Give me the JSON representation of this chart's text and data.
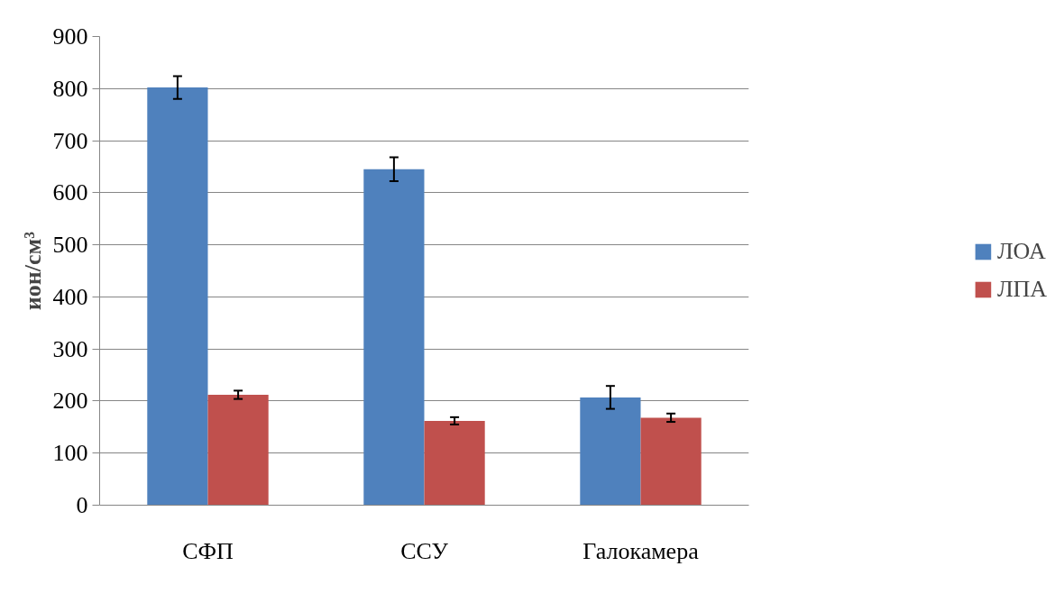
{
  "chart_data": {
    "type": "bar",
    "ylabel": "ион/см³",
    "categories": [
      "СФП",
      "ССУ",
      "Галокамера"
    ],
    "series": [
      {
        "name": "ЛОА",
        "color": "#4f81bd",
        "values": [
          802,
          645,
          207
        ],
        "errors": [
          22,
          23,
          22
        ]
      },
      {
        "name": "ЛПА",
        "color": "#c0504d",
        "values": [
          212,
          162,
          168
        ],
        "errors": [
          8,
          7,
          8
        ]
      }
    ],
    "ylim": [
      0,
      900
    ],
    "yticks": [
      0,
      100,
      200,
      300,
      400,
      500,
      600,
      700,
      800,
      900
    ],
    "grid": "y",
    "legend": "right"
  }
}
